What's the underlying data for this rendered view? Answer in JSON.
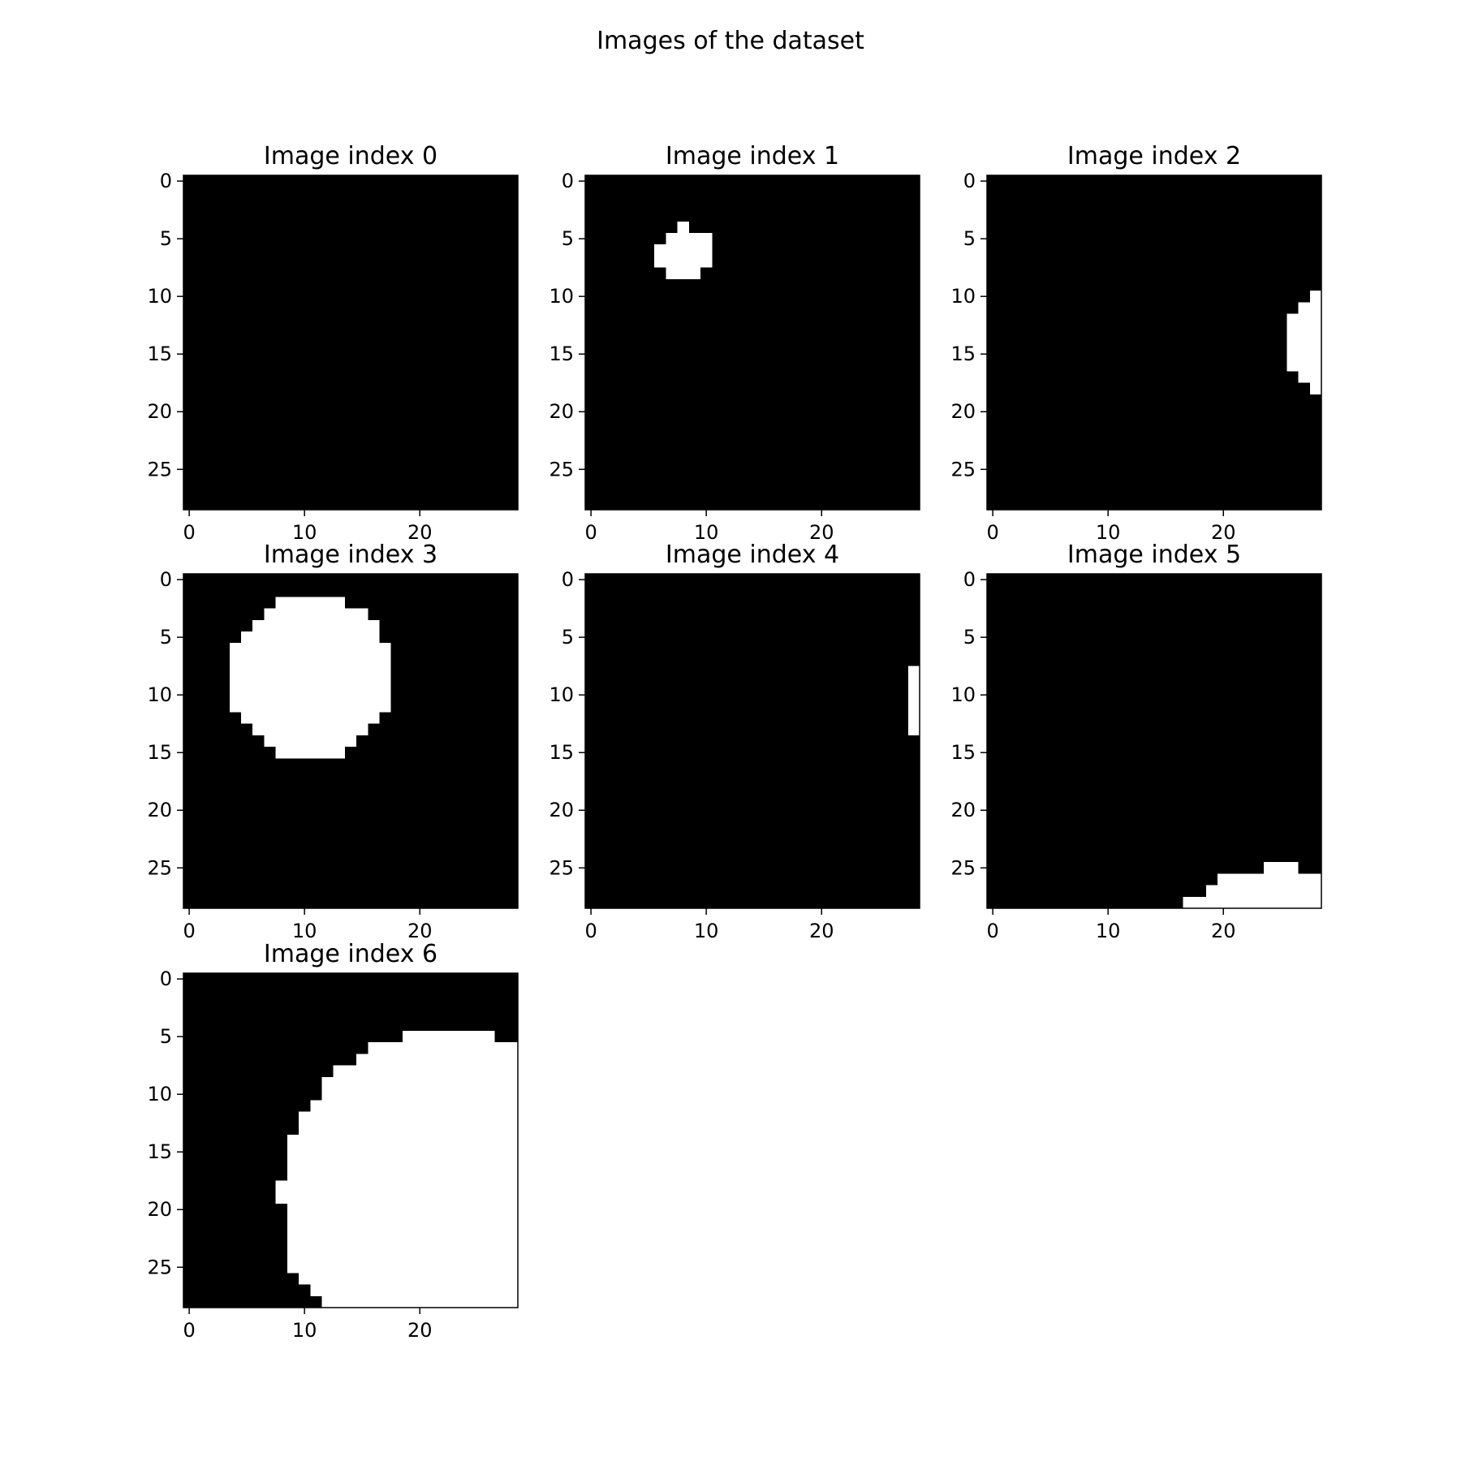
{
  "figure": {
    "title": "Images of the dataset",
    "colors": {
      "background": "#000000",
      "foreground": "#ffffff",
      "text": "#000000"
    }
  },
  "chart_data": [
    {
      "type": "heatmap",
      "title": "Image index 0",
      "size": 29,
      "xticks": [
        0,
        10,
        20
      ],
      "yticks": [
        0,
        5,
        10,
        15,
        20,
        25
      ],
      "white_rows": []
    },
    {
      "type": "heatmap",
      "title": "Image index 1",
      "size": 29,
      "xticks": [
        0,
        10,
        20
      ],
      "yticks": [
        0,
        5,
        10,
        15,
        20,
        25
      ],
      "white_rows": [
        [
          4,
          8,
          8
        ],
        [
          5,
          7,
          10
        ],
        [
          6,
          6,
          10
        ],
        [
          7,
          6,
          10
        ],
        [
          8,
          7,
          9
        ]
      ]
    },
    {
      "type": "heatmap",
      "title": "Image index 2",
      "size": 29,
      "xticks": [
        0,
        10,
        20
      ],
      "yticks": [
        0,
        5,
        10,
        15,
        20,
        25
      ],
      "white_rows": [
        [
          10,
          28,
          28
        ],
        [
          11,
          27,
          28
        ],
        [
          12,
          26,
          28
        ],
        [
          13,
          26,
          28
        ],
        [
          14,
          26,
          28
        ],
        [
          15,
          26,
          28
        ],
        [
          16,
          26,
          28
        ],
        [
          17,
          27,
          28
        ],
        [
          18,
          28,
          28
        ]
      ]
    },
    {
      "type": "heatmap",
      "title": "Image index 3",
      "size": 29,
      "xticks": [
        0,
        10,
        20
      ],
      "yticks": [
        0,
        5,
        10,
        15,
        20,
        25
      ],
      "white_rows": [
        [
          2,
          8,
          13
        ],
        [
          3,
          7,
          15
        ],
        [
          4,
          6,
          16
        ],
        [
          5,
          5,
          16
        ],
        [
          6,
          4,
          17
        ],
        [
          7,
          4,
          17
        ],
        [
          8,
          4,
          17
        ],
        [
          9,
          4,
          17
        ],
        [
          10,
          4,
          17
        ],
        [
          11,
          4,
          17
        ],
        [
          12,
          5,
          16
        ],
        [
          13,
          6,
          15
        ],
        [
          14,
          7,
          14
        ],
        [
          15,
          8,
          13
        ]
      ]
    },
    {
      "type": "heatmap",
      "title": "Image index 4",
      "size": 29,
      "xticks": [
        0,
        10,
        20
      ],
      "yticks": [
        0,
        5,
        10,
        15,
        20,
        25
      ],
      "white_rows": [
        [
          8,
          28,
          28
        ],
        [
          9,
          28,
          28
        ],
        [
          10,
          28,
          28
        ],
        [
          11,
          28,
          28
        ],
        [
          12,
          28,
          28
        ],
        [
          13,
          28,
          28
        ]
      ]
    },
    {
      "type": "heatmap",
      "title": "Image index 5",
      "size": 29,
      "xticks": [
        0,
        10,
        20
      ],
      "yticks": [
        0,
        5,
        10,
        15,
        20,
        25
      ],
      "white_rows": [
        [
          25,
          24,
          26
        ],
        [
          26,
          20,
          28
        ],
        [
          27,
          19,
          28
        ],
        [
          28,
          17,
          28
        ]
      ]
    },
    {
      "type": "heatmap",
      "title": "Image index 6",
      "size": 29,
      "xticks": [
        0,
        10,
        20
      ],
      "yticks": [
        0,
        5,
        10,
        15,
        20,
        25
      ],
      "white_rows": [
        [
          5,
          19,
          26
        ],
        [
          6,
          16,
          28
        ],
        [
          7,
          15,
          28
        ],
        [
          8,
          13,
          28
        ],
        [
          9,
          12,
          28
        ],
        [
          10,
          12,
          28
        ],
        [
          11,
          11,
          28
        ],
        [
          12,
          10,
          28
        ],
        [
          13,
          10,
          28
        ],
        [
          14,
          9,
          28
        ],
        [
          15,
          9,
          28
        ],
        [
          16,
          9,
          28
        ],
        [
          17,
          9,
          28
        ],
        [
          18,
          8,
          28
        ],
        [
          19,
          8,
          28
        ],
        [
          20,
          9,
          28
        ],
        [
          21,
          9,
          28
        ],
        [
          22,
          9,
          28
        ],
        [
          23,
          9,
          28
        ],
        [
          24,
          9,
          28
        ],
        [
          25,
          9,
          28
        ],
        [
          26,
          10,
          28
        ],
        [
          27,
          11,
          28
        ],
        [
          28,
          12,
          28
        ]
      ]
    }
  ]
}
